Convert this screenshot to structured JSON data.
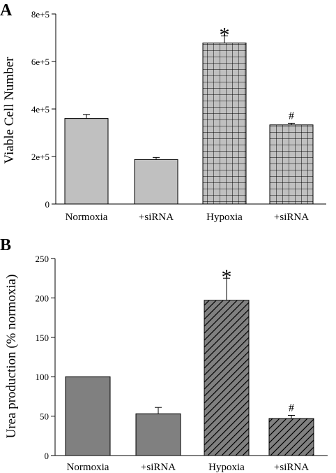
{
  "chart_data": [
    {
      "panel_label": "A",
      "type": "bar",
      "categories": [
        "Normoxia",
        "+siRNA",
        "Hypoxia",
        "+siRNA"
      ],
      "values": [
        360000,
        187000,
        678000,
        333000
      ],
      "errors": [
        17000,
        9000,
        30000,
        7000
      ],
      "ylabel": "Viable Cell Number",
      "ylim": [
        0,
        800000
      ],
      "yticks": [
        0,
        200000,
        400000,
        600000,
        800000
      ],
      "ytick_labels": [
        "0",
        "2e+5",
        "4e+5",
        "6e+5",
        "8e+5"
      ],
      "fills": [
        "solid",
        "solid",
        "grid",
        "grid"
      ],
      "colors": [
        "#c0c0c0",
        "#c0c0c0",
        "#c0c0c0",
        "#c0c0c0"
      ],
      "annotations": [
        "",
        "",
        "*",
        "#"
      ],
      "grid": false
    },
    {
      "panel_label": "B",
      "type": "bar",
      "categories": [
        "Normoxia",
        "+siRNA",
        "Hypoxia",
        "+siRNA"
      ],
      "values": [
        100,
        53,
        197,
        47
      ],
      "errors": [
        0,
        8,
        28,
        4
      ],
      "ylabel": "Urea production (% normoxia)",
      "ylim": [
        0,
        250
      ],
      "yticks": [
        0,
        50,
        100,
        150,
        200,
        250
      ],
      "ytick_labels": [
        "0",
        "50",
        "100",
        "150",
        "200",
        "250"
      ],
      "fills": [
        "solid",
        "solid",
        "hatch",
        "hatch"
      ],
      "colors": [
        "#808080",
        "#808080",
        "#808080",
        "#808080"
      ],
      "annotations": [
        "",
        "",
        "*",
        "#"
      ],
      "grid": false
    }
  ]
}
